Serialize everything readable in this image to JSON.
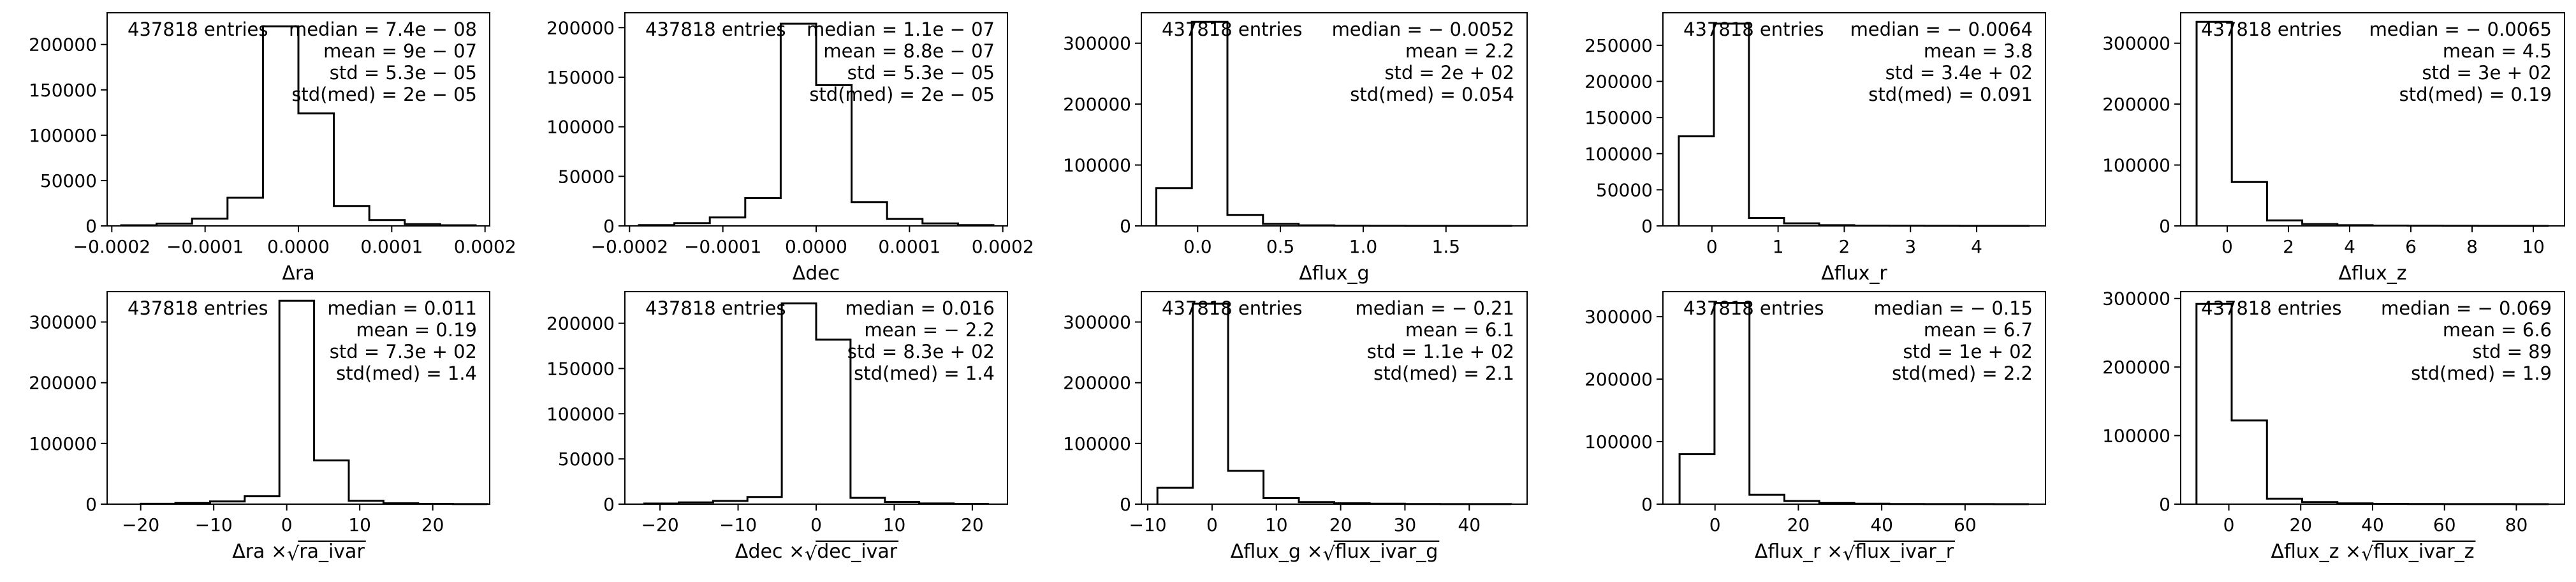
{
  "figure": {
    "background": "#ffffff",
    "line_color": "#000000"
  },
  "chart_data": [
    {
      "type": "bar",
      "xlabel": "Δra",
      "entries": "437818 entries",
      "stats": [
        "median = 7.4e − 08",
        "mean = 9e − 07",
        "std = 5.3e − 05",
        "std(med) = 2e − 05"
      ],
      "bin_edges": [
        -0.00019,
        -0.000152,
        -0.000114,
        -7.6e-05,
        -3.8e-05,
        0,
        3.8e-05,
        7.6e-05,
        0.000114,
        0.000152,
        0.00019
      ],
      "counts": [
        700,
        2500,
        8000,
        31000,
        220000,
        124000,
        22000,
        6500,
        2000,
        700
      ],
      "xlim": [
        -0.000205,
        0.000205
      ],
      "ylim": [
        0,
        235000
      ],
      "xticks": [
        -0.0002,
        -0.0001,
        0,
        0.0001,
        0.0002
      ],
      "xticklabels": [
        "−0.0002",
        "−0.0001",
        "0.0000",
        "0.0001",
        "0.0002"
      ],
      "yticks": [
        0,
        50000,
        100000,
        150000,
        200000
      ],
      "yticklabels": [
        "0",
        "50000",
        "100000",
        "150000",
        "200000"
      ]
    },
    {
      "type": "bar",
      "xlabel": "Δdec",
      "entries": "437818 entries",
      "stats": [
        "median = 1.1e − 07",
        "mean = 8.8e − 07",
        "std = 5.3e − 05",
        "std(med) = 2e − 05"
      ],
      "bin_edges": [
        -0.00019,
        -0.000152,
        -0.000114,
        -7.6e-05,
        -3.8e-05,
        0,
        3.8e-05,
        7.6e-05,
        0.000114,
        0.000152,
        0.00019
      ],
      "counts": [
        800,
        2800,
        8500,
        28000,
        204000,
        142000,
        24000,
        7000,
        2500,
        800
      ],
      "xlim": [
        -0.000205,
        0.000205
      ],
      "ylim": [
        0,
        215000
      ],
      "xticks": [
        -0.0002,
        -0.0001,
        0,
        0.0001,
        0.0002
      ],
      "xticklabels": [
        "−0.0002",
        "−0.0001",
        "0.0000",
        "0.0001",
        "0.0002"
      ],
      "yticks": [
        0,
        50000,
        100000,
        150000,
        200000
      ],
      "yticklabels": [
        "0",
        "50000",
        "100000",
        "150000",
        "200000"
      ]
    },
    {
      "type": "bar",
      "xlabel": "Δflux_g",
      "entries": "437818 entries",
      "stats": [
        "median = − 0.0052",
        "mean = 2.2",
        "std = 2e + 02",
        "std(med) = 0.054"
      ],
      "bin_edges": [
        -0.25,
        -0.035,
        0.18,
        0.395,
        0.61,
        0.825,
        1.04,
        1.255,
        1.47,
        1.685,
        1.9
      ],
      "counts": [
        62000,
        335000,
        18000,
        3500,
        900,
        300,
        120,
        50,
        25,
        10
      ],
      "xlim": [
        -0.34,
        1.99
      ],
      "ylim": [
        0,
        350000
      ],
      "xticks": [
        0,
        0.5,
        1.0,
        1.5
      ],
      "xticklabels": [
        "0.0",
        "0.5",
        "1.0",
        "1.5"
      ],
      "yticks": [
        0,
        100000,
        200000,
        300000
      ],
      "yticklabels": [
        "0",
        "100000",
        "200000",
        "300000"
      ]
    },
    {
      "type": "bar",
      "xlabel": "Δflux_r",
      "entries": "437818 entries",
      "stats": [
        "median = − 0.0064",
        "mean = 3.8",
        "std = 3.4e + 02",
        "std(med) = 0.091"
      ],
      "bin_edges": [
        -0.5,
        0.03,
        0.56,
        1.09,
        1.62,
        2.15,
        2.68,
        3.21,
        3.74,
        4.27,
        4.8
      ],
      "counts": [
        124000,
        280000,
        11000,
        3500,
        1000,
        350,
        150,
        60,
        30,
        15
      ],
      "xlim": [
        -0.74,
        5.04
      ],
      "ylim": [
        0,
        295000
      ],
      "xticks": [
        0,
        1,
        2,
        3,
        4
      ],
      "xticklabels": [
        "0",
        "1",
        "2",
        "3",
        "4"
      ],
      "yticks": [
        0,
        50000,
        100000,
        150000,
        200000,
        250000
      ],
      "yticklabels": [
        "0",
        "50000",
        "100000",
        "150000",
        "200000",
        "250000"
      ]
    },
    {
      "type": "bar",
      "xlabel": "Δflux_z",
      "entries": "437818 entries",
      "stats": [
        "median = − 0.0065",
        "mean = 4.5",
        "std = 3e + 02",
        "std(med) = 0.19"
      ],
      "bin_edges": [
        -1.0,
        0.15,
        1.3,
        2.45,
        3.6,
        4.75,
        5.9,
        7.05,
        8.2,
        9.35,
        10.5
      ],
      "counts": [
        335000,
        72000,
        9000,
        3000,
        1200,
        500,
        250,
        100,
        50,
        20
      ],
      "xlim": [
        -1.52,
        11.02
      ],
      "ylim": [
        0,
        350000
      ],
      "xticks": [
        0,
        2,
        4,
        6,
        8,
        10
      ],
      "xticklabels": [
        "0",
        "2",
        "4",
        "6",
        "8",
        "10"
      ],
      "yticks": [
        0,
        100000,
        200000,
        300000
      ],
      "yticklabels": [
        "0",
        "100000",
        "200000",
        "300000"
      ]
    },
    {
      "type": "bar",
      "xlabel": "Δra × √ra_ivar",
      "xlabel_parts": [
        "Δra × ",
        "ra_ivar"
      ],
      "entries": "437818 entries",
      "stats": [
        "median = 0.011",
        "mean = 0.19",
        "std = 7.3e + 02",
        "std(med) = 1.4"
      ],
      "bin_edges": [
        -20,
        -15.25,
        -10.5,
        -5.75,
        -1.0,
        3.75,
        8.5,
        13.25,
        18.0,
        22.75,
        27.5
      ],
      "counts": [
        600,
        1800,
        4500,
        13000,
        335000,
        72000,
        5500,
        1500,
        500,
        150
      ],
      "xlim": [
        -24.6,
        27.8
      ],
      "ylim": [
        0,
        350000
      ],
      "xticks": [
        -20,
        -10,
        0,
        10,
        20
      ],
      "xticklabels": [
        "−20",
        "−10",
        "0",
        "10",
        "20"
      ],
      "yticks": [
        0,
        100000,
        200000,
        300000
      ],
      "yticklabels": [
        "0",
        "100000",
        "200000",
        "300000"
      ]
    },
    {
      "type": "bar",
      "xlabel": "Δdec × √dec_ivar",
      "xlabel_parts": [
        "Δdec × ",
        "dec_ivar"
      ],
      "entries": "437818 entries",
      "stats": [
        "median = 0.016",
        "mean = − 2.2",
        "std = 8.3e + 02",
        "std(med) = 1.4"
      ],
      "bin_edges": [
        -22,
        -17.6,
        -13.2,
        -8.8,
        -4.4,
        0,
        4.4,
        8.8,
        13.2,
        17.6,
        22
      ],
      "counts": [
        700,
        2000,
        3500,
        8000,
        222000,
        182000,
        7000,
        2500,
        800,
        300
      ],
      "xlim": [
        -24.5,
        24.5
      ],
      "ylim": [
        0,
        235000
      ],
      "xticks": [
        -20,
        -10,
        0,
        10,
        20
      ],
      "xticklabels": [
        "−20",
        "−10",
        "0",
        "10",
        "20"
      ],
      "yticks": [
        0,
        50000,
        100000,
        150000,
        200000
      ],
      "yticklabels": [
        "0",
        "50000",
        "100000",
        "150000",
        "200000"
      ]
    },
    {
      "type": "bar",
      "xlabel": "Δflux_g × √flux_ivar_g",
      "xlabel_parts": [
        "Δflux_g × ",
        "flux_ivar_g"
      ],
      "entries": "437818 entries",
      "stats": [
        "median = − 0.21",
        "mean = 6.1",
        "std = 1.1e + 02",
        "std(med) = 2.1"
      ],
      "bin_edges": [
        -8.5,
        -3.0,
        2.5,
        8.0,
        13.5,
        19.0,
        24.5,
        30.0,
        35.5,
        41.0,
        46.5
      ],
      "counts": [
        27000,
        330000,
        55000,
        10000,
        3500,
        1500,
        700,
        300,
        150,
        80
      ],
      "xlim": [
        -11.0,
        49.0
      ],
      "ylim": [
        0,
        350000
      ],
      "xticks": [
        -10,
        0,
        10,
        20,
        30,
        40
      ],
      "xticklabels": [
        "−10",
        "0",
        "10",
        "20",
        "30",
        "40"
      ],
      "yticks": [
        0,
        100000,
        200000,
        300000
      ],
      "yticklabels": [
        "0",
        "100000",
        "200000",
        "300000"
      ]
    },
    {
      "type": "bar",
      "xlabel": "Δflux_r × √flux_ivar_r",
      "xlabel_parts": [
        "Δflux_r × ",
        "flux_ivar_r"
      ],
      "entries": "437818 entries",
      "stats": [
        "median = − 0.15",
        "mean = 6.7",
        "std = 1e + 02",
        "std(med) = 2.2"
      ],
      "bin_edges": [
        -8.5,
        -0.12,
        8.26,
        16.64,
        25.02,
        33.4,
        41.78,
        50.16,
        58.54,
        66.92,
        75.3
      ],
      "counts": [
        80000,
        322000,
        15000,
        5000,
        1700,
        700,
        300,
        150,
        80,
        40
      ],
      "xlim": [
        -12.5,
        79.3
      ],
      "ylim": [
        0,
        340000
      ],
      "xticks": [
        0,
        20,
        40,
        60
      ],
      "xticklabels": [
        "0",
        "20",
        "40",
        "60"
      ],
      "yticks": [
        0,
        100000,
        200000,
        300000
      ],
      "yticklabels": [
        "0",
        "100000",
        "200000",
        "300000"
      ]
    },
    {
      "type": "bar",
      "xlabel": "Δflux_z × √flux_ivar_z",
      "xlabel_parts": [
        "Δflux_z × ",
        "flux_ivar_z"
      ],
      "entries": "437818 entries",
      "stats": [
        "median = − 0.069",
        "mean = 6.6",
        "std = 89",
        "std(med) = 1.9"
      ],
      "bin_edges": [
        -9.0,
        0.8,
        10.6,
        20.4,
        30.2,
        40.0,
        49.8,
        59.6,
        69.4,
        79.2,
        89.0
      ],
      "counts": [
        292000,
        122000,
        8000,
        3000,
        1200,
        500,
        250,
        120,
        60,
        30
      ],
      "xlim": [
        -13.4,
        93.4
      ],
      "ylim": [
        0,
        310000
      ],
      "xticks": [
        0,
        20,
        40,
        60,
        80
      ],
      "xticklabels": [
        "0",
        "20",
        "40",
        "60",
        "80"
      ],
      "yticks": [
        0,
        100000,
        200000,
        300000
      ],
      "yticklabels": [
        "0",
        "100000",
        "200000",
        "300000"
      ]
    }
  ]
}
